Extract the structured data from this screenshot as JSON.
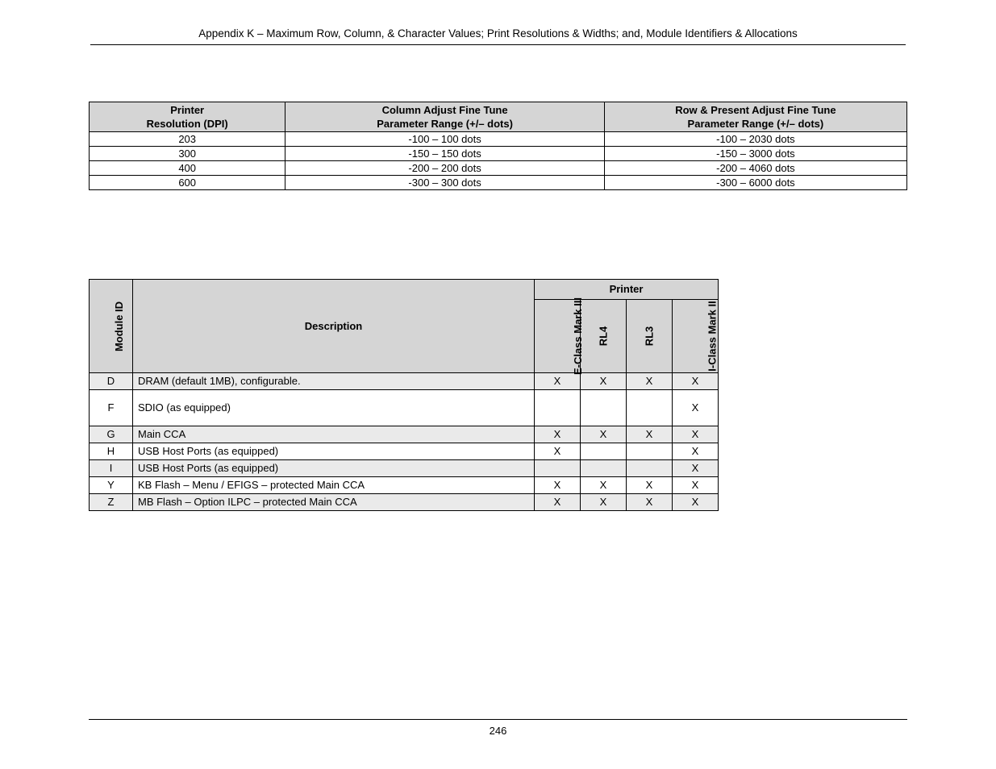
{
  "header": {
    "title": "Appendix K – Maximum Row, Column, & Character Values; Print Resolutions & Widths; and, Module Identifiers & Allocations"
  },
  "table1": {
    "columns": [
      {
        "line1": "Printer",
        "line2": "Resolution (DPI)"
      },
      {
        "line1": "Column Adjust Fine Tune",
        "line2": "Parameter Range (+/– dots)"
      },
      {
        "line1": "Row & Present Adjust Fine Tune",
        "line2": "Parameter Range (+/– dots)"
      }
    ],
    "rows": [
      {
        "dpi": "203",
        "col_range": "-100 – 100 dots",
        "row_range": "-100 – 2030 dots"
      },
      {
        "dpi": "300",
        "col_range": "-150 – 150 dots",
        "row_range": "-150 – 3000 dots"
      },
      {
        "dpi": "400",
        "col_range": "-200 – 200 dots",
        "row_range": "-200 – 4060 dots"
      },
      {
        "dpi": "600",
        "col_range": "-300 – 300 dots",
        "row_range": "-300 – 6000 dots"
      }
    ]
  },
  "table2": {
    "headers": {
      "module_id": "Module ID",
      "description": "Description",
      "printer_group": "Printer",
      "printers": [
        "E-Class Mark III",
        "RL4",
        "RL3",
        "I-Class Mark II"
      ]
    },
    "rows": [
      {
        "id": "D",
        "desc": "DRAM (default 1MB), configurable.",
        "marks": [
          "X",
          "X",
          "X",
          "X"
        ],
        "shade": true,
        "tall": false
      },
      {
        "id": "F",
        "desc": "SDIO (as equipped)",
        "marks": [
          "",
          "",
          "",
          "X"
        ],
        "shade": false,
        "tall": true
      },
      {
        "id": "G",
        "desc": "Main CCA",
        "marks": [
          "X",
          "X",
          "X",
          "X"
        ],
        "shade": true,
        "tall": false
      },
      {
        "id": "H",
        "desc": "USB Host Ports (as equipped)",
        "marks": [
          "X",
          "",
          "",
          "X"
        ],
        "shade": false,
        "tall": false
      },
      {
        "id": "I",
        "desc": "USB Host Ports (as equipped)",
        "marks": [
          "",
          "",
          "",
          "X"
        ],
        "shade": true,
        "tall": false
      },
      {
        "id": "Y",
        "desc": "KB Flash – Menu / EFIGS – protected Main CCA",
        "marks": [
          "X",
          "X",
          "X",
          "X"
        ],
        "shade": false,
        "tall": false
      },
      {
        "id": "Z",
        "desc": "MB Flash – Option ILPC – protected Main CCA",
        "marks": [
          "X",
          "X",
          "X",
          "X"
        ],
        "shade": true,
        "tall": false
      }
    ]
  },
  "footer": {
    "page_number": "246"
  }
}
